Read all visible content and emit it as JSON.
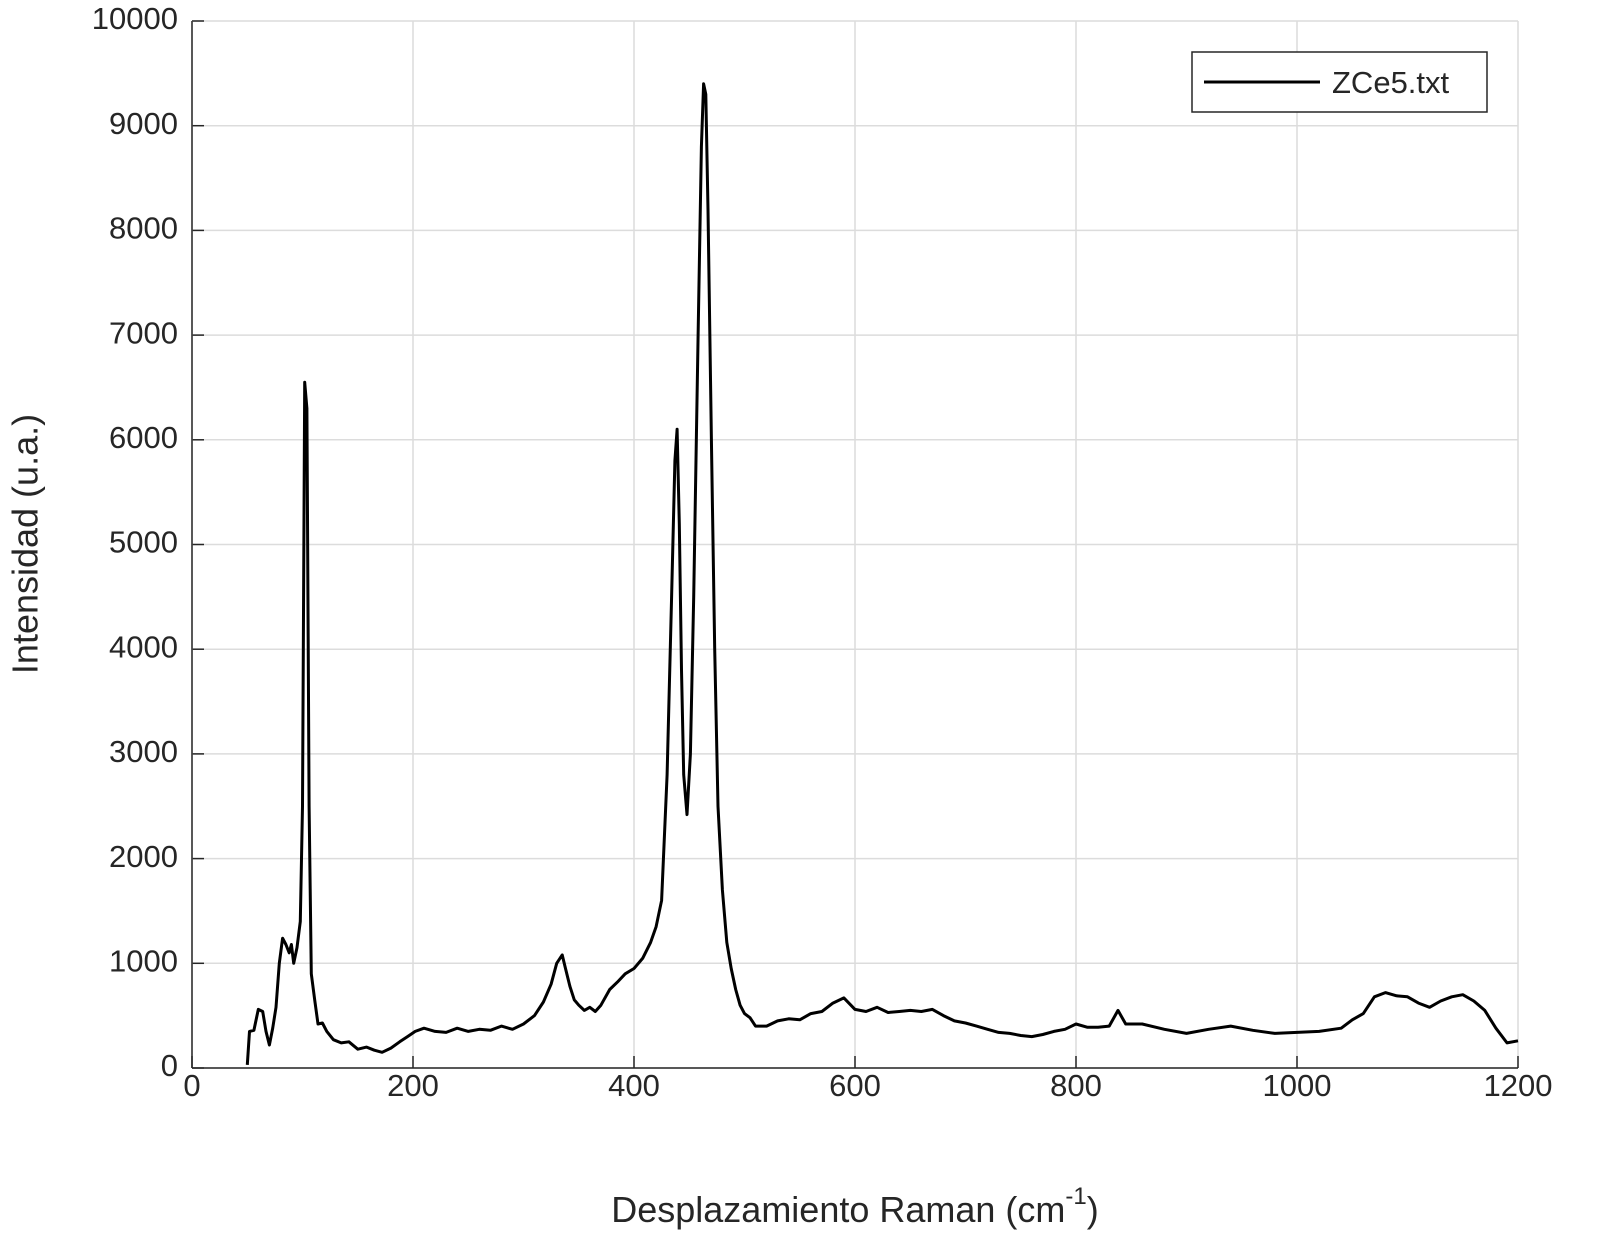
{
  "chart_data": {
    "type": "line",
    "xlabel": [
      "Desplazamiento Raman (cm",
      "-1",
      ")"
    ],
    "ylabel": "Intensidad (u.a.)",
    "x": [
      50,
      52,
      56,
      60,
      64,
      67,
      70,
      73,
      76,
      79,
      82,
      85,
      88,
      90,
      92,
      95,
      98,
      100,
      102,
      104,
      106,
      108,
      111,
      114,
      118,
      122,
      128,
      135,
      142,
      150,
      158,
      165,
      172,
      180,
      188,
      195,
      202,
      210,
      220,
      230,
      240,
      250,
      260,
      270,
      280,
      290,
      300,
      310,
      318,
      325,
      330,
      335,
      338,
      342,
      346,
      350,
      355,
      360,
      365,
      370,
      378,
      385,
      392,
      400,
      408,
      415,
      420,
      425,
      430,
      434,
      437,
      439,
      441,
      443,
      445,
      448,
      451,
      454,
      458,
      461,
      463,
      465,
      467,
      470,
      473,
      476,
      480,
      484,
      488,
      492,
      496,
      500,
      505,
      510,
      520,
      530,
      540,
      550,
      560,
      570,
      580,
      590,
      600,
      610,
      620,
      630,
      640,
      650,
      660,
      670,
      680,
      690,
      700,
      710,
      720,
      730,
      740,
      750,
      760,
      770,
      780,
      790,
      800,
      810,
      820,
      830,
      838,
      845,
      860,
      880,
      900,
      920,
      940,
      960,
      980,
      1000,
      1020,
      1040,
      1050,
      1060,
      1070,
      1080,
      1090,
      1100,
      1110,
      1120,
      1130,
      1140,
      1150,
      1160,
      1170,
      1180,
      1190,
      1200
    ],
    "series": [
      {
        "name": "ZCe5.txt",
        "color": "#000000",
        "values": [
          30,
          350,
          360,
          560,
          540,
          350,
          220,
          380,
          580,
          1000,
          1240,
          1180,
          1100,
          1180,
          1000,
          1150,
          1400,
          2500,
          6550,
          6300,
          2500,
          900,
          650,
          420,
          430,
          350,
          270,
          240,
          250,
          180,
          200,
          170,
          150,
          190,
          250,
          300,
          350,
          380,
          350,
          340,
          380,
          350,
          370,
          360,
          400,
          370,
          420,
          500,
          630,
          800,
          1000,
          1080,
          950,
          780,
          650,
          600,
          550,
          580,
          540,
          600,
          750,
          820,
          900,
          950,
          1050,
          1200,
          1350,
          1600,
          2800,
          4500,
          5800,
          6100,
          5200,
          3800,
          2800,
          2420,
          3000,
          4500,
          7000,
          8800,
          9400,
          9300,
          8200,
          6000,
          4000,
          2500,
          1700,
          1200,
          950,
          750,
          600,
          520,
          480,
          400,
          400,
          450,
          470,
          460,
          520,
          540,
          620,
          670,
          560,
          540,
          580,
          530,
          540,
          550,
          540,
          560,
          500,
          450,
          430,
          400,
          370,
          340,
          330,
          310,
          300,
          320,
          350,
          370,
          420,
          390,
          390,
          400,
          550,
          420,
          420,
          370,
          330,
          370,
          400,
          360,
          330,
          340,
          350,
          380,
          460,
          520,
          680,
          720,
          690,
          680,
          620,
          580,
          640,
          680,
          700,
          640,
          550,
          380,
          240,
          260
        ]
      }
    ],
    "xlim": [
      0,
      1200
    ],
    "xticks": [
      0,
      200,
      400,
      600,
      800,
      1000,
      1200
    ],
    "ylim": [
      0,
      10000
    ],
    "yticks": [
      0,
      1000,
      2000,
      3000,
      4000,
      5000,
      6000,
      7000,
      8000,
      9000,
      10000
    ],
    "grid": true,
    "legend": "northeast"
  }
}
